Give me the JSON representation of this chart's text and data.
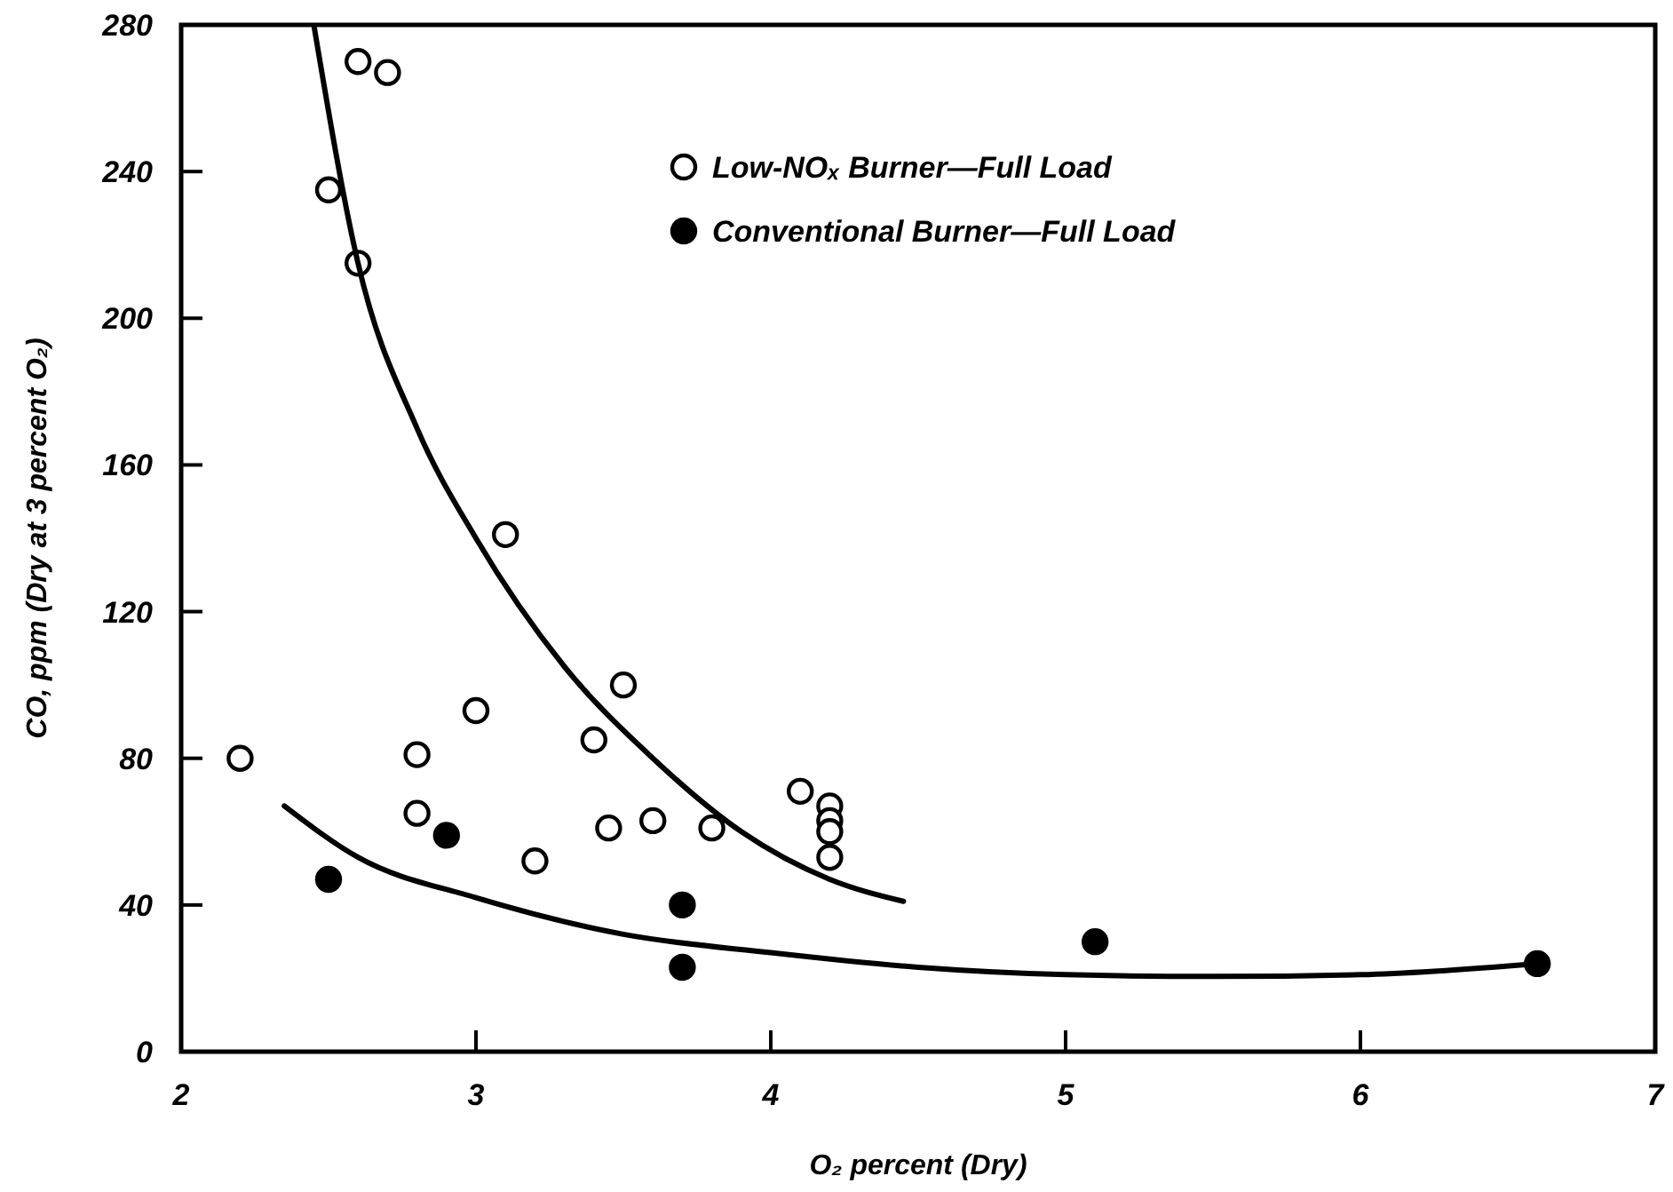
{
  "chart_data": {
    "type": "scatter",
    "xlabel": "O₂ percent (Dry)",
    "ylabel": "CO, ppm (Dry at 3 percent O₂)",
    "xlim": [
      2,
      7
    ],
    "xticks": [
      2,
      3,
      4,
      5,
      6,
      7
    ],
    "ylim": [
      0,
      280
    ],
    "yticks": [
      0,
      40,
      80,
      120,
      160,
      200,
      240,
      280
    ],
    "grid": false,
    "legend": "top right",
    "series": [
      {
        "name": "Low-NOₓ Burner—Full Load",
        "color": "#000000",
        "marker": "circle",
        "x": [
          2.2,
          2.5,
          2.6,
          2.7,
          2.6,
          2.8,
          2.8,
          3.0,
          3.1,
          3.2,
          3.4,
          3.45,
          3.5,
          3.6,
          3.8,
          4.1,
          4.2,
          4.2,
          4.2,
          4.2
        ],
        "values": [
          80,
          235,
          270,
          267,
          215,
          81,
          65,
          93,
          141,
          52,
          85,
          61,
          100,
          63,
          61,
          71,
          67,
          63,
          60,
          53
        ]
      },
      {
        "name": "Conventional Burner—Full Load",
        "color": "#000000",
        "marker": "circle",
        "x": [
          2.5,
          2.9,
          3.7,
          3.7,
          5.1,
          6.6
        ],
        "values": [
          47,
          59,
          40,
          23,
          30,
          24
        ]
      },
      {
        "type": "line",
        "color": "#000000",
        "marker": "none",
        "x": [
          2.45,
          2.6,
          2.8,
          3.0,
          3.3,
          3.6,
          3.9,
          4.2,
          4.45
        ],
        "values": [
          280,
          215,
          170,
          140,
          105,
          80,
          60,
          47,
          41
        ]
      },
      {
        "type": "line",
        "color": "#000000",
        "marker": "none",
        "x": [
          2.35,
          2.6,
          3.0,
          3.5,
          4.0,
          4.5,
          5.0,
          5.5,
          6.0,
          6.6
        ],
        "values": [
          67,
          53,
          42,
          32,
          27,
          23,
          21,
          20.5,
          21,
          24
        ]
      }
    ]
  }
}
